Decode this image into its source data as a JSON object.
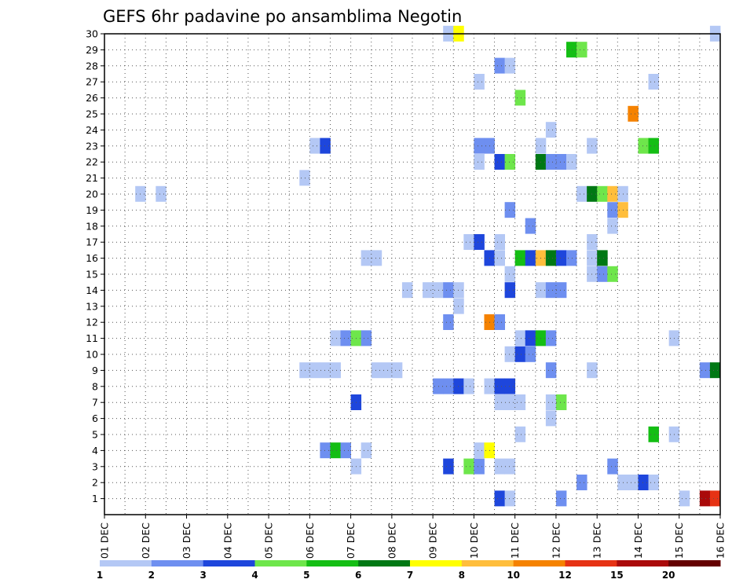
{
  "chart_data": {
    "type": "heatmap",
    "title": "GEFS 6hr padavine po ansamblima Negotin",
    "xlabel": "",
    "ylabel": "",
    "x_tick_labels": [
      "01 DEC",
      "02 DEC",
      "03 DEC",
      "04 DEC",
      "05 DEC",
      "06 DEC",
      "07 DEC",
      "08 DEC",
      "09 DEC",
      "10 DEC",
      "11 DEC",
      "12 DEC",
      "13 DEC",
      "14 DEC",
      "15 DEC",
      "16 DEC"
    ],
    "y_tick_labels": [
      "1",
      "2",
      "3",
      "4",
      "5",
      "6",
      "7",
      "8",
      "9",
      "10",
      "11",
      "12",
      "13",
      "14",
      "15",
      "16",
      "17",
      "18",
      "19",
      "20",
      "21",
      "22",
      "23",
      "24",
      "25",
      "26",
      "27",
      "28",
      "29",
      "30"
    ],
    "xlim_days": [
      1,
      16
    ],
    "ylim": [
      0,
      30
    ],
    "grid": true,
    "colorbar": {
      "placement": "bottom",
      "tick_labels": [
        "1",
        "2",
        "3",
        "4",
        "5",
        "6",
        "7",
        "8",
        "10",
        "12",
        "15",
        "20"
      ],
      "colors": [
        "#b4c8f5",
        "#6e8ff0",
        "#1e46dc",
        "#6ee64b",
        "#14be14",
        "#007814",
        "#ffff00",
        "#ffbe3c",
        "#f58200",
        "#e63214",
        "#aa0a0a",
        "#640000"
      ]
    },
    "cells": [
      {
        "day": 9.25,
        "member": 30,
        "level": 0
      },
      {
        "day": 9.5,
        "member": 30,
        "level": 6
      },
      {
        "day": 15.75,
        "member": 30,
        "level": 0
      },
      {
        "day": 12.25,
        "member": 29,
        "level": 4
      },
      {
        "day": 12.5,
        "member": 29,
        "level": 3
      },
      {
        "day": 10.5,
        "member": 28,
        "level": 1
      },
      {
        "day": 10.75,
        "member": 28,
        "level": 0
      },
      {
        "day": 10,
        "member": 27,
        "level": 0
      },
      {
        "day": 14.25,
        "member": 27,
        "level": 0
      },
      {
        "day": 11,
        "member": 26,
        "level": 3
      },
      {
        "day": 13.75,
        "member": 25,
        "level": 8
      },
      {
        "day": 11.75,
        "member": 24,
        "level": 0
      },
      {
        "day": 6,
        "member": 23,
        "level": 0
      },
      {
        "day": 6.25,
        "member": 23,
        "level": 2
      },
      {
        "day": 10,
        "member": 23,
        "level": 1
      },
      {
        "day": 10.25,
        "member": 23,
        "level": 1
      },
      {
        "day": 11.5,
        "member": 23,
        "level": 0
      },
      {
        "day": 12.75,
        "member": 23,
        "level": 0
      },
      {
        "day": 14,
        "member": 23,
        "level": 3
      },
      {
        "day": 14.25,
        "member": 23,
        "level": 4
      },
      {
        "day": 10,
        "member": 22,
        "level": 0
      },
      {
        "day": 10.5,
        "member": 22,
        "level": 2
      },
      {
        "day": 10.75,
        "member": 22,
        "level": 3
      },
      {
        "day": 11.5,
        "member": 22,
        "level": 5
      },
      {
        "day": 11.75,
        "member": 22,
        "level": 1
      },
      {
        "day": 12,
        "member": 22,
        "level": 1
      },
      {
        "day": 12.25,
        "member": 22,
        "level": 0
      },
      {
        "day": 5.75,
        "member": 21,
        "level": 0
      },
      {
        "day": 1.75,
        "member": 20,
        "level": 0
      },
      {
        "day": 2.25,
        "member": 20,
        "level": 0
      },
      {
        "day": 12.5,
        "member": 20,
        "level": 0
      },
      {
        "day": 12.75,
        "member": 20,
        "level": 5
      },
      {
        "day": 13,
        "member": 20,
        "level": 3
      },
      {
        "day": 13.25,
        "member": 20,
        "level": 7
      },
      {
        "day": 13.5,
        "member": 20,
        "level": 0
      },
      {
        "day": 10.75,
        "member": 19,
        "level": 1
      },
      {
        "day": 13.25,
        "member": 19,
        "level": 1
      },
      {
        "day": 13.5,
        "member": 19,
        "level": 7
      },
      {
        "day": 11.25,
        "member": 18,
        "level": 1
      },
      {
        "day": 13.25,
        "member": 18,
        "level": 0
      },
      {
        "day": 9.75,
        "member": 17,
        "level": 0
      },
      {
        "day": 10,
        "member": 17,
        "level": 2
      },
      {
        "day": 10.5,
        "member": 17,
        "level": 0
      },
      {
        "day": 12.75,
        "member": 17,
        "level": 0
      },
      {
        "day": 7.25,
        "member": 16,
        "level": 0
      },
      {
        "day": 7.5,
        "member": 16,
        "level": 0
      },
      {
        "day": 10.25,
        "member": 16,
        "level": 2
      },
      {
        "day": 10.5,
        "member": 16,
        "level": 0
      },
      {
        "day": 11,
        "member": 16,
        "level": 4
      },
      {
        "day": 11.25,
        "member": 16,
        "level": 2
      },
      {
        "day": 11.5,
        "member": 16,
        "level": 7
      },
      {
        "day": 11.75,
        "member": 16,
        "level": 5
      },
      {
        "day": 12,
        "member": 16,
        "level": 2
      },
      {
        "day": 12.25,
        "member": 16,
        "level": 1
      },
      {
        "day": 12.75,
        "member": 16,
        "level": 0
      },
      {
        "day": 13,
        "member": 16,
        "level": 5
      },
      {
        "day": 10.75,
        "member": 15,
        "level": 0
      },
      {
        "day": 12.75,
        "member": 15,
        "level": 0
      },
      {
        "day": 13,
        "member": 15,
        "level": 1
      },
      {
        "day": 13.25,
        "member": 15,
        "level": 3
      },
      {
        "day": 8.25,
        "member": 14,
        "level": 0
      },
      {
        "day": 8.75,
        "member": 14,
        "level": 0
      },
      {
        "day": 9,
        "member": 14,
        "level": 0
      },
      {
        "day": 9.25,
        "member": 14,
        "level": 1
      },
      {
        "day": 9.5,
        "member": 14,
        "level": 0
      },
      {
        "day": 10.75,
        "member": 14,
        "level": 2
      },
      {
        "day": 11.5,
        "member": 14,
        "level": 0
      },
      {
        "day": 11.75,
        "member": 14,
        "level": 1
      },
      {
        "day": 12,
        "member": 14,
        "level": 1
      },
      {
        "day": 9.5,
        "member": 13,
        "level": 0
      },
      {
        "day": 9.25,
        "member": 12,
        "level": 1
      },
      {
        "day": 10.25,
        "member": 12,
        "level": 8
      },
      {
        "day": 10.5,
        "member": 12,
        "level": 1
      },
      {
        "day": 6.5,
        "member": 11,
        "level": 0
      },
      {
        "day": 6.75,
        "member": 11,
        "level": 1
      },
      {
        "day": 7,
        "member": 11,
        "level": 3
      },
      {
        "day": 7.25,
        "member": 11,
        "level": 1
      },
      {
        "day": 11,
        "member": 11,
        "level": 0
      },
      {
        "day": 11.25,
        "member": 11,
        "level": 2
      },
      {
        "day": 11.5,
        "member": 11,
        "level": 4
      },
      {
        "day": 11.75,
        "member": 11,
        "level": 1
      },
      {
        "day": 14.75,
        "member": 11,
        "level": 0
      },
      {
        "day": 10.75,
        "member": 10,
        "level": 0
      },
      {
        "day": 11,
        "member": 10,
        "level": 2
      },
      {
        "day": 11.25,
        "member": 10,
        "level": 1
      },
      {
        "day": 5.75,
        "member": 9,
        "level": 0
      },
      {
        "day": 6,
        "member": 9,
        "level": 0
      },
      {
        "day": 6.25,
        "member": 9,
        "level": 0
      },
      {
        "day": 6.5,
        "member": 9,
        "level": 0
      },
      {
        "day": 7.5,
        "member": 9,
        "level": 0
      },
      {
        "day": 7.75,
        "member": 9,
        "level": 0
      },
      {
        "day": 8,
        "member": 9,
        "level": 0
      },
      {
        "day": 11.75,
        "member": 9,
        "level": 1
      },
      {
        "day": 12.75,
        "member": 9,
        "level": 0
      },
      {
        "day": 15.5,
        "member": 9,
        "level": 1
      },
      {
        "day": 15.75,
        "member": 9,
        "level": 5
      },
      {
        "day": 9,
        "member": 8,
        "level": 1
      },
      {
        "day": 9.25,
        "member": 8,
        "level": 1
      },
      {
        "day": 9.5,
        "member": 8,
        "level": 2
      },
      {
        "day": 9.75,
        "member": 8,
        "level": 0
      },
      {
        "day": 10.25,
        "member": 8,
        "level": 0
      },
      {
        "day": 10.5,
        "member": 8,
        "level": 2
      },
      {
        "day": 10.75,
        "member": 8,
        "level": 2
      },
      {
        "day": 7,
        "member": 7,
        "level": 2
      },
      {
        "day": 10.5,
        "member": 7,
        "level": 0
      },
      {
        "day": 10.75,
        "member": 7,
        "level": 0
      },
      {
        "day": 11,
        "member": 7,
        "level": 0
      },
      {
        "day": 11.75,
        "member": 7,
        "level": 0
      },
      {
        "day": 12,
        "member": 7,
        "level": 3
      },
      {
        "day": 11.75,
        "member": 6,
        "level": 0
      },
      {
        "day": 11,
        "member": 5,
        "level": 0
      },
      {
        "day": 14.25,
        "member": 5,
        "level": 4
      },
      {
        "day": 14.75,
        "member": 5,
        "level": 0
      },
      {
        "day": 6.25,
        "member": 4,
        "level": 1
      },
      {
        "day": 6.5,
        "member": 4,
        "level": 4
      },
      {
        "day": 6.75,
        "member": 4,
        "level": 1
      },
      {
        "day": 7.25,
        "member": 4,
        "level": 0
      },
      {
        "day": 10,
        "member": 4,
        "level": 0
      },
      {
        "day": 10.25,
        "member": 4,
        "level": 6
      },
      {
        "day": 7,
        "member": 3,
        "level": 0
      },
      {
        "day": 9.25,
        "member": 3,
        "level": 2
      },
      {
        "day": 9.75,
        "member": 3,
        "level": 3
      },
      {
        "day": 10,
        "member": 3,
        "level": 1
      },
      {
        "day": 10.5,
        "member": 3,
        "level": 0
      },
      {
        "day": 10.75,
        "member": 3,
        "level": 0
      },
      {
        "day": 13.25,
        "member": 3,
        "level": 1
      },
      {
        "day": 12.5,
        "member": 2,
        "level": 1
      },
      {
        "day": 13.5,
        "member": 2,
        "level": 0
      },
      {
        "day": 13.75,
        "member": 2,
        "level": 0
      },
      {
        "day": 14,
        "member": 2,
        "level": 2
      },
      {
        "day": 14.25,
        "member": 2,
        "level": 0
      },
      {
        "day": 10.5,
        "member": 1,
        "level": 2
      },
      {
        "day": 10.75,
        "member": 1,
        "level": 0
      },
      {
        "day": 12,
        "member": 1,
        "level": 1
      },
      {
        "day": 15,
        "member": 1,
        "level": 0
      },
      {
        "day": 15.5,
        "member": 1,
        "level": 10
      },
      {
        "day": 15.75,
        "member": 1,
        "level": 9
      }
    ]
  }
}
